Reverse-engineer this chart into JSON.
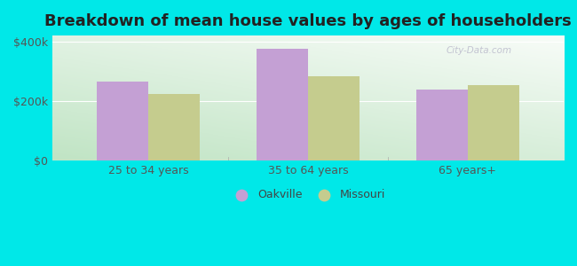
{
  "title": "Breakdown of mean house values by ages of householders",
  "categories": [
    "25 to 34 years",
    "35 to 64 years",
    "65 years+"
  ],
  "oakville_values": [
    265000,
    375000,
    238000
  ],
  "missouri_values": [
    222000,
    283000,
    252000
  ],
  "oakville_color": "#c4a0d4",
  "missouri_color": "#c5cc8e",
  "ylim": [
    0,
    420000
  ],
  "yticks": [
    0,
    200000,
    400000
  ],
  "ytick_labels": [
    "$0",
    "$200k",
    "$400k"
  ],
  "background_color": "#00e8e8",
  "grad_color_topleft": "#d4edd8",
  "grad_color_topright": "#f2f8f0",
  "grad_color_bottomleft": "#b8e0c0",
  "grad_color_bottomright": "#e8f4ec",
  "bar_width": 0.32,
  "legend_labels": [
    "Oakville",
    "Missouri"
  ],
  "title_fontsize": 13,
  "tick_fontsize": 9,
  "legend_fontsize": 9
}
